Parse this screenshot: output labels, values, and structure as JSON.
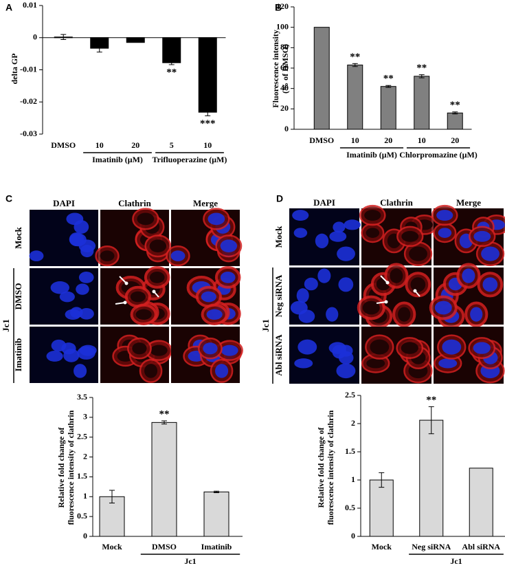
{
  "chart_data": [
    {
      "type": "bar",
      "panel": "A",
      "y_label": [
        "delta GP"
      ],
      "categories": [
        "DMSO",
        "10",
        "20",
        "5",
        "10"
      ],
      "values": [
        0.0002,
        -0.0033,
        -0.0015,
        -0.0078,
        -0.0232
      ],
      "errors": [
        0.0008,
        0.0012,
        null,
        0.0006,
        0.0011
      ],
      "significance": [
        null,
        null,
        null,
        "**",
        "***"
      ],
      "groups": [
        {
          "label": "Imatinib (μM)",
          "first": 1,
          "last": 2
        },
        {
          "label": "Trifluoperazine (μM)",
          "first": 3,
          "last": 4
        }
      ],
      "color": "#000000",
      "ylim": [
        -0.03,
        0.01
      ],
      "yticks": [
        0.01,
        0,
        -0.01,
        -0.02,
        -0.03
      ]
    },
    {
      "type": "bar",
      "panel": "B",
      "y_label": [
        "Fluorescence intensity",
        "(% of DMSO)"
      ],
      "categories": [
        "DMSO",
        "10",
        "20",
        "10",
        "20"
      ],
      "values": [
        100,
        63,
        42,
        52,
        16
      ],
      "errors": [
        null,
        1.5,
        1,
        1.5,
        1
      ],
      "significance": [
        null,
        "**",
        "**",
        "**",
        "**"
      ],
      "groups": [
        {
          "label": "Imatinib (μM)",
          "first": 1,
          "last": 2
        },
        {
          "label": "Chlorpromazine (μM)",
          "first": 3,
          "last": 4
        }
      ],
      "color": "#808080",
      "ylim": [
        0,
        120
      ],
      "yticks": [
        0,
        20,
        40,
        60,
        80,
        100,
        120
      ]
    },
    {
      "type": "bar",
      "y_label": [
        "Relative fold change of",
        "fluorescence intensity of clathrin"
      ],
      "categories": [
        "Mock",
        "DMSO",
        "Imatinib"
      ],
      "values": [
        1.0,
        2.87,
        1.12
      ],
      "errors": [
        0.16,
        0.04,
        0.02
      ],
      "significance": [
        null,
        "**",
        null
      ],
      "groups": [
        {
          "label": "Jc1",
          "first": 1,
          "last": 2
        }
      ],
      "color": "#d9d9d9",
      "ylim": [
        0,
        3.5
      ],
      "yticks": [
        0,
        0.5,
        1,
        1.5,
        2,
        2.5,
        3,
        3.5
      ]
    },
    {
      "type": "bar",
      "y_label": [
        "Relative fold change of",
        "fluorescence intensity of clathrin"
      ],
      "categories": [
        "Mock",
        "Neg siRNA",
        "Abl siRNA"
      ],
      "values": [
        1.0,
        2.06,
        1.21
      ],
      "errors": [
        0.13,
        0.24,
        null
      ],
      "significance": [
        null,
        "**",
        null
      ],
      "groups": [
        {
          "label": "Jc1",
          "first": 1,
          "last": 2
        }
      ],
      "color": "#d9d9d9",
      "ylim": [
        0,
        2.5
      ],
      "yticks": [
        0,
        0.5,
        1,
        1.5,
        2,
        2.5
      ]
    }
  ],
  "micrographs": [
    {
      "label": "C",
      "columns": [
        "DAPI",
        "Clathrin",
        "Merge"
      ],
      "rows": [
        "Mock",
        "DMSO",
        "Imatinib"
      ],
      "group": "Jc1"
    },
    {
      "label": "D",
      "columns": [
        "DAPI",
        "Clathrin",
        "Merge"
      ],
      "rows": [
        "Mock",
        "Neg siRNA",
        "Abl siRNA"
      ],
      "group": "Jc1"
    }
  ]
}
